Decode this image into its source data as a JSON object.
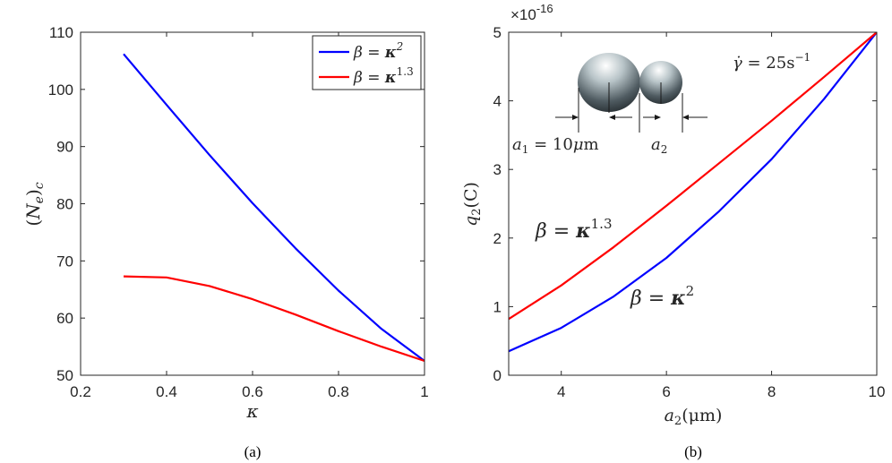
{
  "colors": {
    "blue": "#0000ff",
    "red": "#ff0000",
    "axis": "#262626"
  },
  "chart_data": [
    {
      "type": "line",
      "caption": "(a)",
      "xlabel": "κ",
      "ylabel": "(N_e)_c",
      "xlim": [
        0.2,
        1.0
      ],
      "ylim": [
        50,
        110
      ],
      "xticks": [
        0.2,
        0.4,
        0.6,
        0.8,
        1.0
      ],
      "xtick_labels": [
        "0.2",
        "0.4",
        "0.6",
        "0.8",
        "1"
      ],
      "yticks": [
        50,
        60,
        70,
        80,
        90,
        100,
        110
      ],
      "ytick_labels": [
        "50",
        "60",
        "70",
        "80",
        "90",
        "100",
        "110"
      ],
      "grid": false,
      "legend_position": "top-right",
      "series": [
        {
          "name": "β = κ^2",
          "color": "#0000ff",
          "x": [
            0.3,
            0.4,
            0.5,
            0.6,
            0.7,
            0.8,
            0.9,
            1.0
          ],
          "y": [
            106.2,
            97.3,
            88.5,
            80.1,
            72.2,
            64.8,
            58.1,
            52.5
          ]
        },
        {
          "name": "β = κ^1.3",
          "color": "#ff0000",
          "x": [
            0.3,
            0.4,
            0.5,
            0.6,
            0.7,
            0.8,
            0.9,
            1.0
          ],
          "y": [
            67.3,
            67.1,
            65.6,
            63.3,
            60.6,
            57.7,
            55.0,
            52.5
          ]
        }
      ]
    },
    {
      "type": "line",
      "caption": "(b)",
      "xlabel": "a_2(μm)",
      "ylabel": "q_2(C)",
      "exponent_label": "×10^-16",
      "xlim": [
        3,
        10
      ],
      "ylim": [
        0,
        5
      ],
      "xticks": [
        4,
        6,
        8,
        10
      ],
      "xtick_labels": [
        "4",
        "6",
        "8",
        "10"
      ],
      "yticks": [
        0,
        1,
        2,
        3,
        4,
        5
      ],
      "ytick_labels": [
        "0",
        "1",
        "2",
        "3",
        "4",
        "5"
      ],
      "grid": false,
      "annotations": {
        "shear_rate": "γ̇ = 25s^−1",
        "a1_label": "a_1 = 10μm",
        "a2_label": "a_2",
        "red_curve_label": "β = κ^1.3",
        "blue_curve_label": "β = κ^2"
      },
      "series": [
        {
          "name": "β = κ^2",
          "color": "#0000ff",
          "x": [
            3,
            4,
            5,
            6,
            7,
            8,
            9,
            10
          ],
          "y": [
            0.35,
            0.69,
            1.15,
            1.71,
            2.39,
            3.15,
            4.03,
            5.0
          ]
        },
        {
          "name": "β = κ^1.3",
          "color": "#ff0000",
          "x": [
            3,
            4,
            5,
            6,
            7,
            8,
            9,
            10
          ],
          "y": [
            0.82,
            1.31,
            1.87,
            2.47,
            3.09,
            3.71,
            4.35,
            5.0
          ]
        }
      ]
    }
  ]
}
